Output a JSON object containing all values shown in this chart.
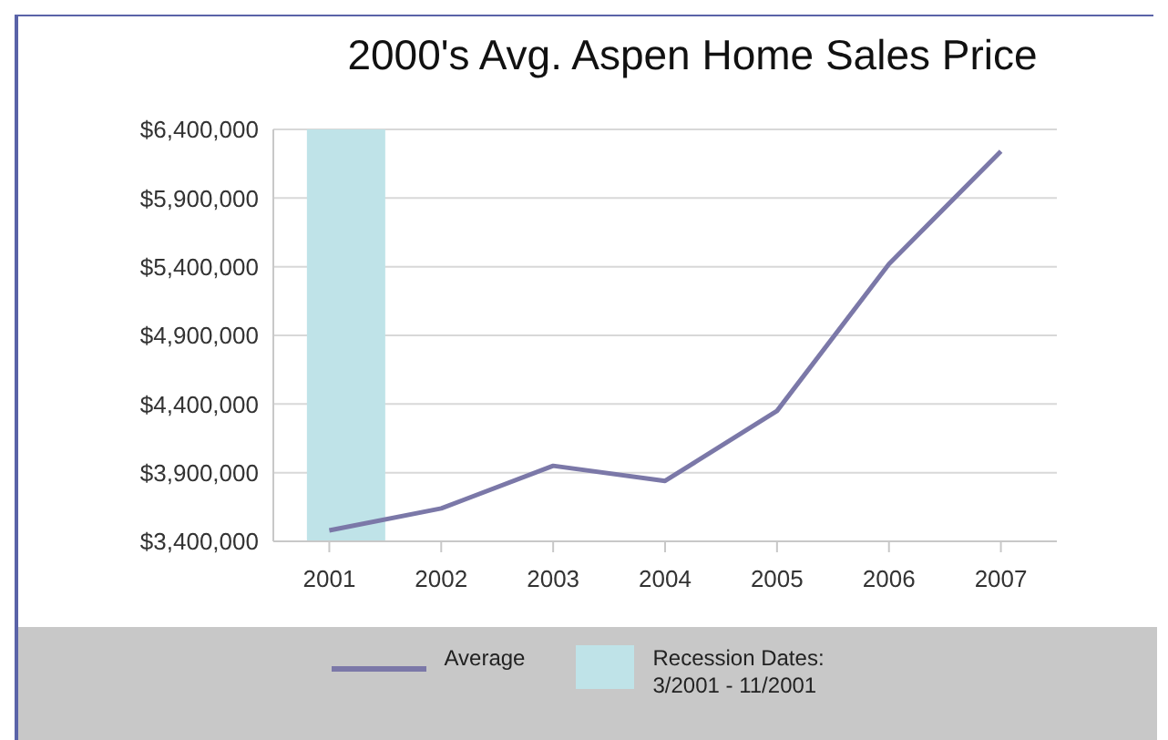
{
  "chart_data": {
    "type": "line",
    "title": "2000's Avg. Aspen Home Sales Price",
    "x": [
      2001,
      2002,
      2003,
      2004,
      2005,
      2006,
      2007
    ],
    "series": [
      {
        "name": "Average",
        "color": "#7b78a8",
        "values": [
          3480000,
          3640000,
          3950000,
          3840000,
          4350000,
          5420000,
          6240000
        ]
      }
    ],
    "xlim": [
      2000.5,
      2007.5
    ],
    "xticks": [
      2001,
      2002,
      2003,
      2004,
      2005,
      2006,
      2007
    ],
    "ylim": [
      3400000,
      6400000
    ],
    "yticks": [
      {
        "value": 3400000,
        "label": "$3,400,000"
      },
      {
        "value": 3900000,
        "label": "$3,900,000"
      },
      {
        "value": 4400000,
        "label": "$4,400,000"
      },
      {
        "value": 4900000,
        "label": "$4,900,000"
      },
      {
        "value": 5400000,
        "label": "$5,400,000"
      },
      {
        "value": 5900000,
        "label": "$5,900,000"
      },
      {
        "value": 6400000,
        "label": "$6,400,000"
      }
    ],
    "bands": [
      {
        "axis": "x",
        "from": 2000.8,
        "to": 2001.5,
        "label": "Recession Dates: 3/2001 - 11/2001",
        "color": "#bfe3e8"
      }
    ],
    "grid": "y",
    "legend": "bottom",
    "marker": "none",
    "line_style": "solid"
  }
}
